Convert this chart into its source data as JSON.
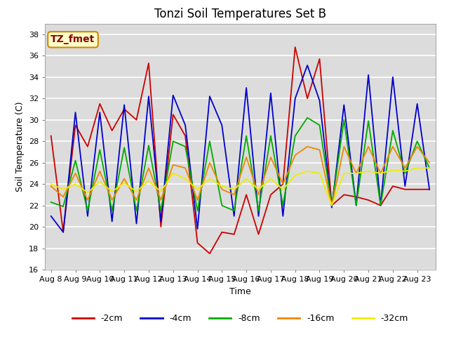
{
  "title": "Tonzi Soil Temperatures Set B",
  "xlabel": "Time",
  "ylabel": "Soil Temperature (C)",
  "annotation": "TZ_fmet",
  "ylim": [
    16,
    39
  ],
  "yticks": [
    16,
    18,
    20,
    22,
    24,
    26,
    28,
    30,
    32,
    34,
    36,
    38
  ],
  "background_color": "#dcdcdc",
  "series": {
    "-2cm": {
      "color": "#cc0000",
      "x": [
        0,
        1,
        2,
        3,
        4,
        5,
        6,
        7,
        8,
        9,
        10,
        11,
        12,
        13,
        14,
        15,
        16,
        17,
        18,
        19,
        20,
        21,
        22,
        23,
        24,
        25,
        26,
        27,
        28,
        29,
        30,
        31
      ],
      "y": [
        28.5,
        19.5,
        29.5,
        27.5,
        31.5,
        29.0,
        31.0,
        30.0,
        35.3,
        20.0,
        30.5,
        28.5,
        18.5,
        17.5,
        19.5,
        19.3,
        23.0,
        19.3,
        23.0,
        24.0,
        36.8,
        32.0,
        35.7,
        22.0,
        23.0,
        22.8,
        22.5,
        22.0,
        23.8,
        23.5,
        23.5,
        23.5
      ]
    },
    "-4cm": {
      "color": "#0000cc",
      "x": [
        0,
        1,
        2,
        3,
        4,
        5,
        6,
        7,
        8,
        9,
        10,
        11,
        12,
        13,
        14,
        15,
        16,
        17,
        18,
        19,
        20,
        21,
        22,
        23,
        24,
        25,
        26,
        27,
        28,
        29,
        30,
        31
      ],
      "y": [
        21.0,
        19.5,
        30.7,
        21.0,
        30.7,
        20.5,
        31.4,
        20.3,
        32.2,
        20.5,
        32.3,
        29.5,
        19.8,
        32.2,
        29.5,
        21.0,
        33.0,
        21.0,
        32.5,
        21.0,
        32.0,
        35.1,
        31.8,
        21.8,
        31.4,
        22.0,
        34.2,
        22.0,
        34.0,
        23.8,
        31.5,
        23.5
      ]
    },
    "-8cm": {
      "color": "#00aa00",
      "x": [
        0,
        1,
        2,
        3,
        4,
        5,
        6,
        7,
        8,
        9,
        10,
        11,
        12,
        13,
        14,
        15,
        16,
        17,
        18,
        19,
        20,
        21,
        22,
        23,
        24,
        25,
        26,
        27,
        28,
        29,
        30,
        31
      ],
      "y": [
        22.3,
        21.9,
        26.2,
        21.5,
        27.2,
        21.5,
        27.4,
        21.5,
        27.6,
        21.5,
        28.0,
        27.5,
        21.5,
        28.0,
        22.0,
        21.5,
        28.5,
        21.5,
        28.5,
        22.0,
        28.5,
        30.2,
        29.5,
        22.0,
        30.0,
        22.0,
        29.9,
        22.0,
        29.0,
        25.0,
        28.0,
        25.5
      ]
    },
    "-16cm": {
      "color": "#ee8800",
      "x": [
        0,
        1,
        2,
        3,
        4,
        5,
        6,
        7,
        8,
        9,
        10,
        11,
        12,
        13,
        14,
        15,
        16,
        17,
        18,
        19,
        20,
        21,
        22,
        23,
        24,
        25,
        26,
        27,
        28,
        29,
        30,
        31
      ],
      "y": [
        23.8,
        22.8,
        25.0,
        22.5,
        25.2,
        22.5,
        24.5,
        22.5,
        25.5,
        22.5,
        25.8,
        25.5,
        22.5,
        26.0,
        23.5,
        23.0,
        26.5,
        23.0,
        26.5,
        24.0,
        26.7,
        27.5,
        27.2,
        22.0,
        27.5,
        25.0,
        27.5,
        25.0,
        27.5,
        25.5,
        27.5,
        26.0
      ]
    },
    "-32cm": {
      "color": "#eeee00",
      "x": [
        0,
        1,
        2,
        3,
        4,
        5,
        6,
        7,
        8,
        9,
        10,
        11,
        12,
        13,
        14,
        15,
        16,
        17,
        18,
        19,
        20,
        21,
        22,
        23,
        24,
        25,
        26,
        27,
        28,
        29,
        30,
        31
      ],
      "y": [
        24.0,
        23.5,
        24.0,
        23.2,
        24.2,
        23.3,
        24.1,
        23.3,
        24.3,
        23.3,
        25.0,
        24.5,
        23.5,
        24.5,
        23.8,
        23.5,
        24.5,
        23.5,
        24.5,
        23.5,
        24.8,
        25.2,
        25.0,
        22.0,
        25.0,
        25.0,
        25.2,
        25.0,
        25.3,
        25.2,
        25.5,
        25.5
      ]
    }
  },
  "xtick_positions": [
    0,
    2,
    4,
    6,
    8,
    10,
    12,
    14,
    16,
    18,
    20,
    22,
    24,
    26,
    28,
    30
  ],
  "xtick_labels": [
    "Aug 8",
    "Aug 9",
    "Aug 10",
    "Aug 11",
    "Aug 12",
    "Aug 13",
    "Aug 14",
    "Aug 15",
    "Aug 16",
    "Aug 17",
    "Aug 18",
    "Aug 19",
    "Aug 20",
    "Aug 21",
    "Aug 22",
    "Aug 23"
  ],
  "legend_labels": [
    "-2cm",
    "-4cm",
    "-8cm",
    "-16cm",
    "-32cm"
  ],
  "legend_colors": [
    "#cc0000",
    "#0000cc",
    "#00aa00",
    "#ee8800",
    "#eeee00"
  ],
  "title_fontsize": 12,
  "label_fontsize": 9,
  "tick_fontsize": 8,
  "annotation_fontsize": 10
}
